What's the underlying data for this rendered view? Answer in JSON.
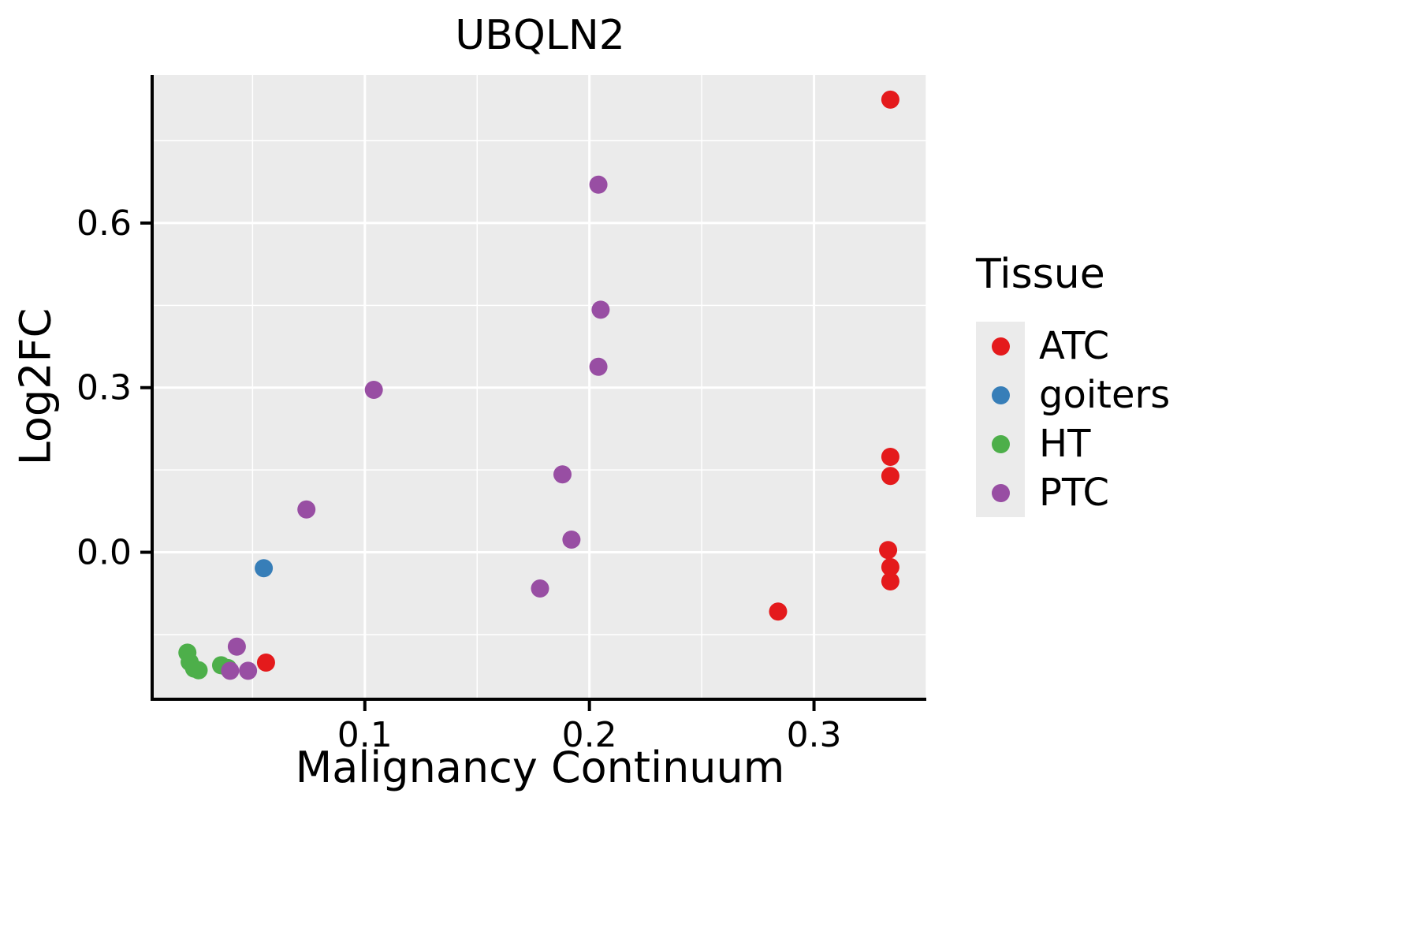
{
  "chart_data": {
    "type": "scatter",
    "title": "UBQLN2",
    "xlabel": "Malignancy Continuum",
    "ylabel": "Log2FC",
    "legend_title": "Tissue",
    "xlim": [
      0.006,
      0.35
    ],
    "ylim": [
      -0.265,
      0.87
    ],
    "xticks": [
      0.1,
      0.2,
      0.3
    ],
    "yticks": [
      0.0,
      0.3,
      0.6
    ],
    "grid": true,
    "legend_position": "right",
    "colors": {
      "panel_background": "#EBEBEB",
      "grid_major": "#FFFFFF",
      "grid_minor": "#FFFFFF",
      "axis": "#000000"
    },
    "series": [
      {
        "name": "ATC",
        "color": "#E41A1C",
        "points": [
          [
            0.334,
            0.825
          ],
          [
            0.334,
            0.174
          ],
          [
            0.334,
            0.139
          ],
          [
            0.333,
            0.004
          ],
          [
            0.334,
            -0.027
          ],
          [
            0.334,
            -0.053
          ],
          [
            0.284,
            -0.108
          ],
          [
            0.056,
            -0.201
          ]
        ]
      },
      {
        "name": "goiters",
        "color": "#377EB8",
        "points": [
          [
            0.055,
            -0.029
          ]
        ]
      },
      {
        "name": "HT",
        "color": "#4DAF4A",
        "points": [
          [
            0.021,
            -0.183
          ],
          [
            0.022,
            -0.2
          ],
          [
            0.024,
            -0.212
          ],
          [
            0.026,
            -0.215
          ],
          [
            0.036,
            -0.206
          ],
          [
            0.039,
            -0.211
          ]
        ]
      },
      {
        "name": "PTC",
        "color": "#984EA3",
        "points": [
          [
            0.204,
            0.67
          ],
          [
            0.205,
            0.442
          ],
          [
            0.204,
            0.338
          ],
          [
            0.104,
            0.296
          ],
          [
            0.188,
            0.142
          ],
          [
            0.074,
            0.078
          ],
          [
            0.192,
            0.023
          ],
          [
            0.178,
            -0.066
          ],
          [
            0.043,
            -0.172
          ],
          [
            0.04,
            -0.216
          ],
          [
            0.048,
            -0.216
          ]
        ]
      }
    ]
  }
}
